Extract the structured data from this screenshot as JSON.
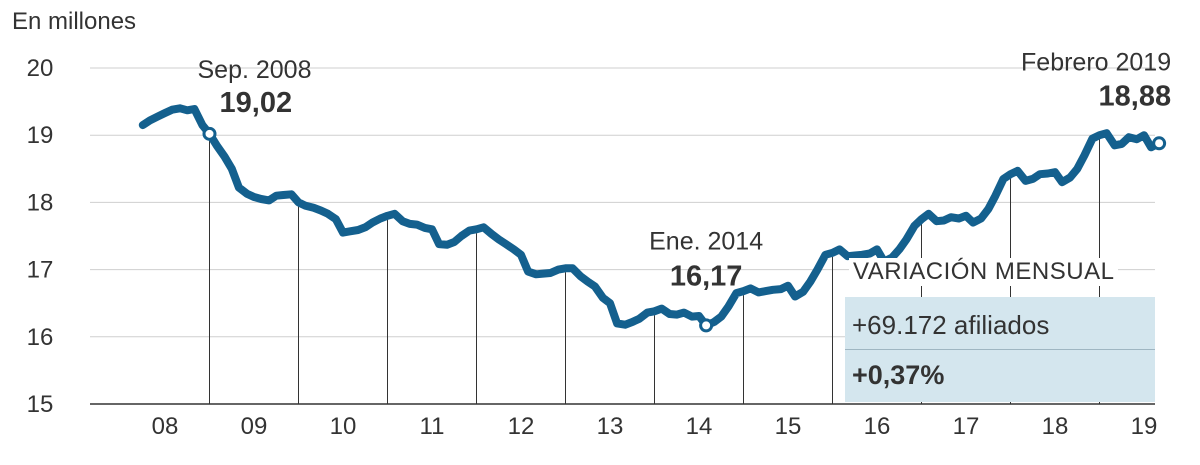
{
  "chart_data": {
    "type": "line",
    "ylabel": "En millones",
    "ylim": [
      15,
      20
    ],
    "yticks": [
      15,
      16,
      17,
      18,
      19,
      20
    ],
    "xlim": [
      2007.67,
      2019.33
    ],
    "xtick_labels": [
      {
        "label": "08",
        "x": 2008
      },
      {
        "label": "09",
        "x": 2009
      },
      {
        "label": "10",
        "x": 2010
      },
      {
        "label": "11",
        "x": 2011
      },
      {
        "label": "12",
        "x": 2012
      },
      {
        "label": "13",
        "x": 2013
      },
      {
        "label": "14",
        "x": 2014
      },
      {
        "label": "15",
        "x": 2015
      },
      {
        "label": "16",
        "x": 2016
      },
      {
        "label": "17",
        "x": 2017
      },
      {
        "label": "18",
        "x": 2018
      },
      {
        "label": "19",
        "x": 2019
      }
    ],
    "year_dividers": [
      2008.5,
      2009.5,
      2010.5,
      2011.5,
      2012.5,
      2013.5,
      2014.5,
      2015.5,
      2016.5,
      2017.5,
      2018.5
    ],
    "line_color": "#14608e",
    "series": [
      {
        "values": [
          [
            2007.75,
            19.15
          ],
          [
            2007.83,
            19.22
          ],
          [
            2007.92,
            19.28
          ],
          [
            2008.0,
            19.33
          ],
          [
            2008.08,
            19.38
          ],
          [
            2008.17,
            19.4
          ],
          [
            2008.25,
            19.37
          ],
          [
            2008.33,
            19.39
          ],
          [
            2008.42,
            19.15
          ],
          [
            2008.5,
            19.02
          ],
          [
            2008.58,
            18.85
          ],
          [
            2008.67,
            18.68
          ],
          [
            2008.75,
            18.5
          ],
          [
            2008.83,
            18.22
          ],
          [
            2008.92,
            18.13
          ],
          [
            2009.0,
            18.08
          ],
          [
            2009.08,
            18.05
          ],
          [
            2009.17,
            18.03
          ],
          [
            2009.25,
            18.1
          ],
          [
            2009.33,
            18.11
          ],
          [
            2009.42,
            18.12
          ],
          [
            2009.5,
            18.0
          ],
          [
            2009.58,
            17.95
          ],
          [
            2009.67,
            17.92
          ],
          [
            2009.75,
            17.88
          ],
          [
            2009.83,
            17.83
          ],
          [
            2009.92,
            17.75
          ],
          [
            2010.0,
            17.55
          ],
          [
            2010.08,
            17.57
          ],
          [
            2010.17,
            17.59
          ],
          [
            2010.25,
            17.63
          ],
          [
            2010.33,
            17.7
          ],
          [
            2010.42,
            17.76
          ],
          [
            2010.5,
            17.8
          ],
          [
            2010.58,
            17.83
          ],
          [
            2010.67,
            17.72
          ],
          [
            2010.75,
            17.68
          ],
          [
            2010.83,
            17.67
          ],
          [
            2010.92,
            17.62
          ],
          [
            2011.0,
            17.6
          ],
          [
            2011.08,
            17.38
          ],
          [
            2011.17,
            17.37
          ],
          [
            2011.25,
            17.41
          ],
          [
            2011.33,
            17.5
          ],
          [
            2011.42,
            17.58
          ],
          [
            2011.5,
            17.6
          ],
          [
            2011.58,
            17.63
          ],
          [
            2011.67,
            17.53
          ],
          [
            2011.75,
            17.45
          ],
          [
            2011.83,
            17.38
          ],
          [
            2011.92,
            17.3
          ],
          [
            2012.0,
            17.22
          ],
          [
            2012.08,
            16.97
          ],
          [
            2012.17,
            16.93
          ],
          [
            2012.25,
            16.94
          ],
          [
            2012.33,
            16.95
          ],
          [
            2012.42,
            17.0
          ],
          [
            2012.5,
            17.02
          ],
          [
            2012.58,
            17.02
          ],
          [
            2012.67,
            16.9
          ],
          [
            2012.75,
            16.82
          ],
          [
            2012.83,
            16.75
          ],
          [
            2012.92,
            16.58
          ],
          [
            2013.0,
            16.5
          ],
          [
            2013.08,
            16.2
          ],
          [
            2013.17,
            16.18
          ],
          [
            2013.25,
            16.22
          ],
          [
            2013.33,
            16.27
          ],
          [
            2013.42,
            16.36
          ],
          [
            2013.5,
            16.38
          ],
          [
            2013.58,
            16.42
          ],
          [
            2013.67,
            16.34
          ],
          [
            2013.75,
            16.33
          ],
          [
            2013.83,
            16.36
          ],
          [
            2013.92,
            16.3
          ],
          [
            2014.0,
            16.31
          ],
          [
            2014.08,
            16.17
          ],
          [
            2014.17,
            16.22
          ],
          [
            2014.25,
            16.3
          ],
          [
            2014.33,
            16.45
          ],
          [
            2014.42,
            16.65
          ],
          [
            2014.5,
            16.68
          ],
          [
            2014.58,
            16.72
          ],
          [
            2014.67,
            16.66
          ],
          [
            2014.75,
            16.68
          ],
          [
            2014.83,
            16.7
          ],
          [
            2014.92,
            16.71
          ],
          [
            2015.0,
            16.76
          ],
          [
            2015.08,
            16.6
          ],
          [
            2015.17,
            16.67
          ],
          [
            2015.25,
            16.82
          ],
          [
            2015.33,
            17.0
          ],
          [
            2015.42,
            17.22
          ],
          [
            2015.5,
            17.25
          ],
          [
            2015.58,
            17.3
          ],
          [
            2015.67,
            17.2
          ],
          [
            2015.75,
            17.21
          ],
          [
            2015.83,
            17.22
          ],
          [
            2015.92,
            17.24
          ],
          [
            2016.0,
            17.3
          ],
          [
            2016.08,
            17.12
          ],
          [
            2016.17,
            17.18
          ],
          [
            2016.25,
            17.3
          ],
          [
            2016.33,
            17.45
          ],
          [
            2016.42,
            17.65
          ],
          [
            2016.5,
            17.75
          ],
          [
            2016.58,
            17.83
          ],
          [
            2016.67,
            17.72
          ],
          [
            2016.75,
            17.73
          ],
          [
            2016.83,
            17.78
          ],
          [
            2016.92,
            17.76
          ],
          [
            2017.0,
            17.8
          ],
          [
            2017.08,
            17.7
          ],
          [
            2017.17,
            17.76
          ],
          [
            2017.25,
            17.9
          ],
          [
            2017.33,
            18.1
          ],
          [
            2017.42,
            18.35
          ],
          [
            2017.5,
            18.42
          ],
          [
            2017.58,
            18.47
          ],
          [
            2017.67,
            18.32
          ],
          [
            2017.75,
            18.35
          ],
          [
            2017.83,
            18.42
          ],
          [
            2017.92,
            18.43
          ],
          [
            2018.0,
            18.45
          ],
          [
            2018.08,
            18.3
          ],
          [
            2018.17,
            18.37
          ],
          [
            2018.25,
            18.5
          ],
          [
            2018.33,
            18.7
          ],
          [
            2018.42,
            18.95
          ],
          [
            2018.5,
            19.0
          ],
          [
            2018.58,
            19.03
          ],
          [
            2018.67,
            18.85
          ],
          [
            2018.75,
            18.87
          ],
          [
            2018.83,
            18.97
          ],
          [
            2018.92,
            18.94
          ],
          [
            2019.0,
            19.0
          ],
          [
            2019.08,
            18.82
          ],
          [
            2019.17,
            18.88
          ]
        ]
      }
    ],
    "annotations": [
      {
        "date": "Sep. 2008",
        "value": "19,02",
        "x": 2008.5,
        "y": 19.02,
        "label_side": "right"
      },
      {
        "date": "Ene. 2014",
        "value": "16,17",
        "x": 2014.08,
        "y": 16.17,
        "label_side": "center"
      },
      {
        "date": "Febrero 2019",
        "value": "18,88",
        "x": 2019.17,
        "y": 18.88,
        "label_side": "left"
      }
    ]
  },
  "panel": {
    "title": "VARIACIÓN MENSUAL",
    "row1": "+69.172 afiliados",
    "row2": "+0,37%"
  }
}
